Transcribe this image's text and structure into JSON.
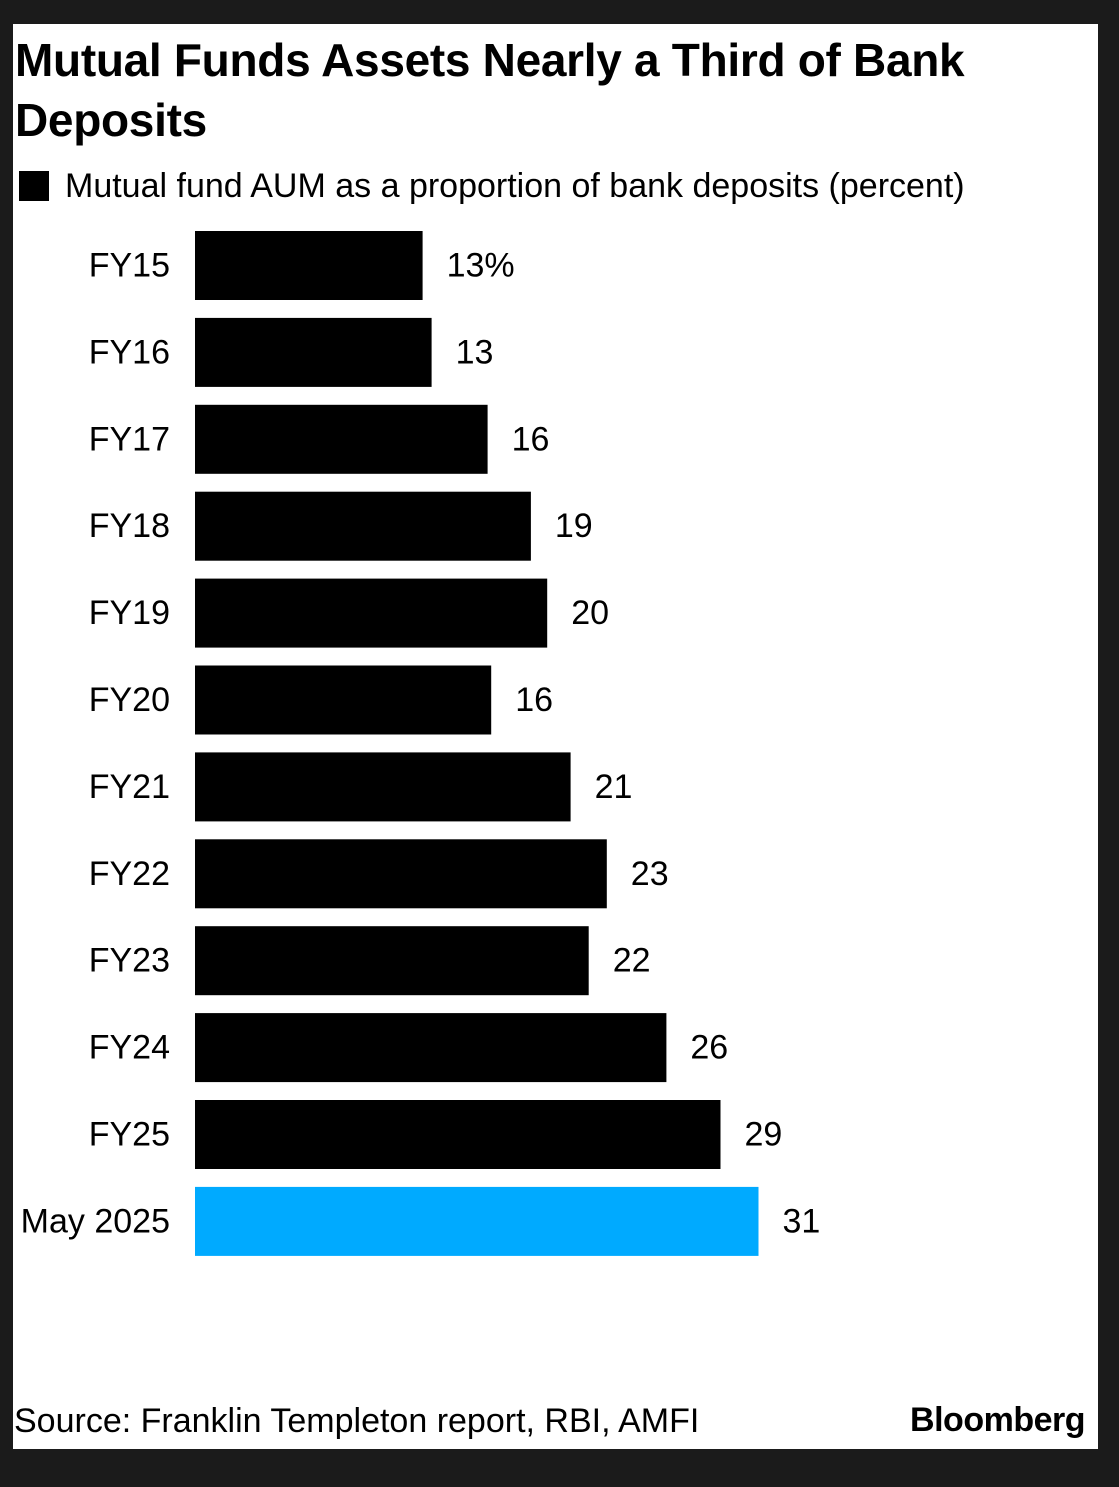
{
  "chart_data": {
    "type": "bar",
    "orientation": "horizontal",
    "title": "Mutual Funds Assets Nearly a Third of Bank Deposits",
    "legend": [
      {
        "label": "Mutual fund AUM as a proportion of bank deposits (percent)",
        "color": "#000000"
      }
    ],
    "legend_placement": "top-left",
    "categories": [
      "FY15",
      "FY16",
      "FY17",
      "FY18",
      "FY19",
      "FY20",
      "FY21",
      "FY22",
      "FY23",
      "FY24",
      "FY25",
      "May 2025"
    ],
    "values": [
      12.6,
      13.1,
      16.2,
      18.6,
      19.5,
      16.4,
      20.8,
      22.8,
      21.8,
      26.1,
      29.1,
      31.2
    ],
    "value_labels": [
      "13%",
      "13",
      "16",
      "19",
      "20",
      "16",
      "21",
      "23",
      "22",
      "26",
      "29",
      "31"
    ],
    "bar_colors": [
      "#000000",
      "#000000",
      "#000000",
      "#000000",
      "#000000",
      "#000000",
      "#000000",
      "#000000",
      "#000000",
      "#000000",
      "#000000",
      "#00aaff"
    ],
    "xlim": [
      0,
      50
    ],
    "grid": false
  },
  "footer": {
    "source": "Source: Franklin Templeton report, RBI, AMFI",
    "brand": "Bloomberg"
  }
}
